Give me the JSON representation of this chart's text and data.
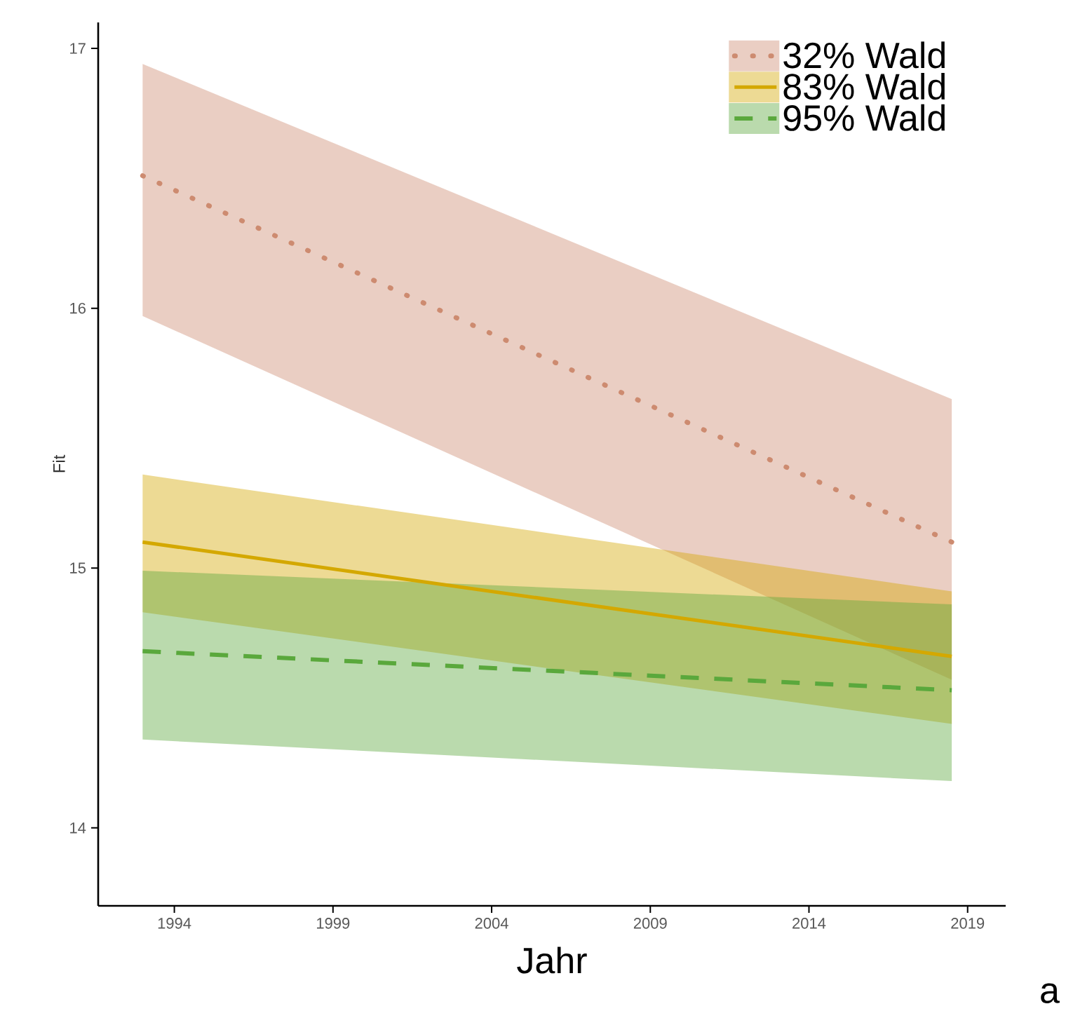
{
  "chart_data": {
    "type": "line",
    "xlabel": "Jahr",
    "ylabel": "Fit",
    "x": [
      1993,
      2018.5
    ],
    "series": [
      {
        "name": "32% Wald",
        "color": "#cd8b70",
        "line_style": "dotted",
        "values": [
          16.51,
          15.1
        ],
        "lower": [
          15.97,
          14.57
        ],
        "upper": [
          16.94,
          15.65
        ]
      },
      {
        "name": "83% Wald",
        "color": "#d4a800",
        "line_style": "solid",
        "values": [
          15.1,
          14.66
        ],
        "lower": [
          14.83,
          14.4
        ],
        "upper": [
          15.36,
          14.91
        ]
      },
      {
        "name": "95% Wald",
        "color": "#5aa83c",
        "line_style": "dashed",
        "values": [
          14.68,
          14.53
        ],
        "lower": [
          14.34,
          14.18
        ],
        "upper": [
          14.99,
          14.86
        ]
      }
    ],
    "xlim": [
      1991.6,
      2020.2
    ],
    "ylim": [
      13.7,
      17.1
    ],
    "xticks": [
      1994,
      1999,
      2004,
      2009,
      2014,
      2019
    ],
    "yticks": [
      14,
      15,
      16,
      17
    ],
    "grid": false,
    "legend": "top right",
    "marker": "none",
    "annotations": [
      "a"
    ]
  }
}
